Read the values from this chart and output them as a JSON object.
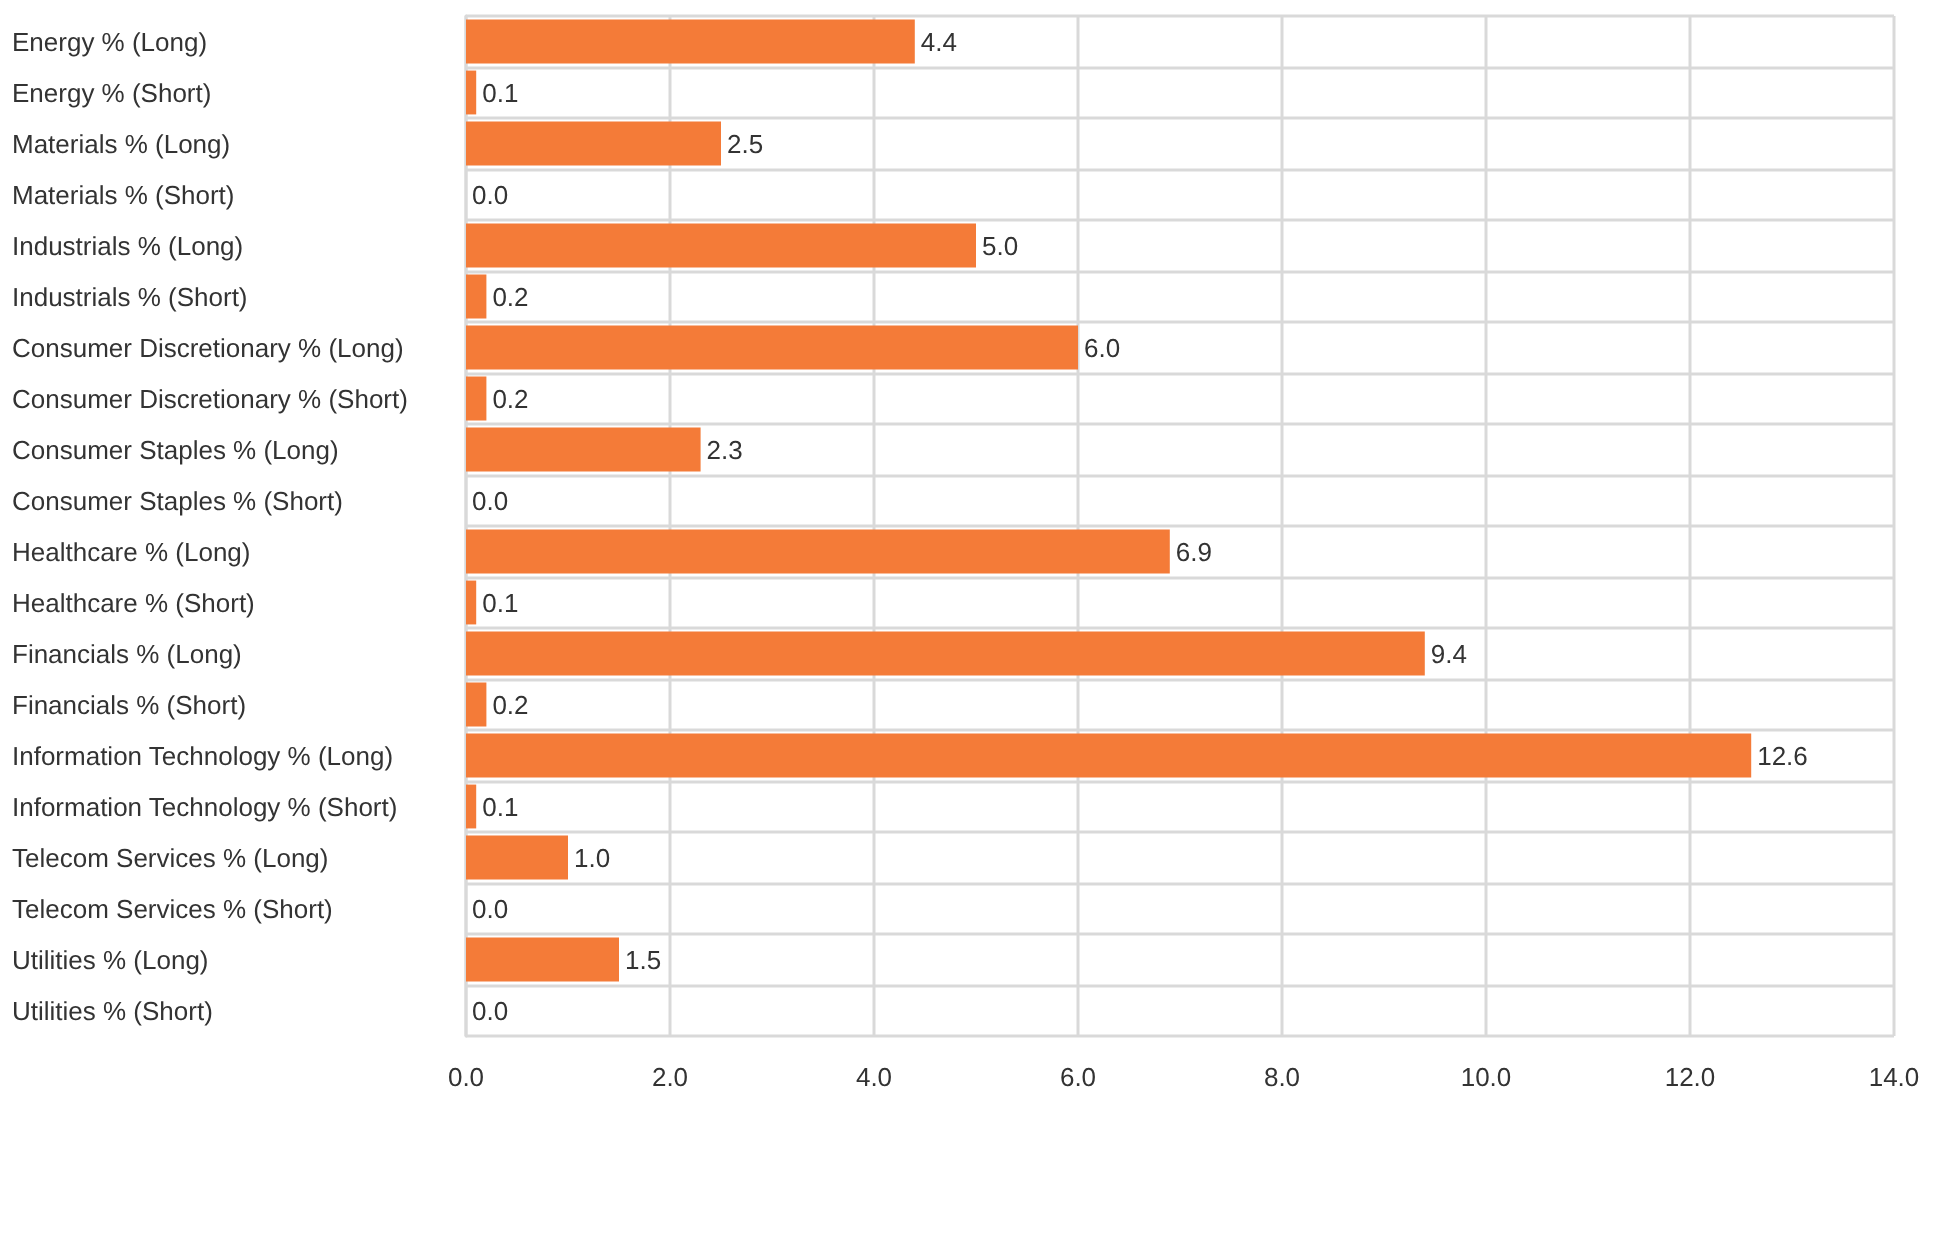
{
  "chart_data": {
    "type": "bar",
    "orientation": "horizontal",
    "categories": [
      "Energy % (Long)",
      "Energy % (Short)",
      "Materials % (Long)",
      "Materials % (Short)",
      "Industrials % (Long)",
      "Industrials % (Short)",
      "Consumer Discretionary % (Long)",
      "Consumer Discretionary % (Short)",
      "Consumer Staples % (Long)",
      "Consumer Staples % (Short)",
      "Healthcare % (Long)",
      "Healthcare % (Short)",
      "Financials % (Long)",
      "Financials % (Short)",
      "Information Technology % (Long)",
      "Information Technology % (Short)",
      "Telecom Services % (Long)",
      "Telecom Services % (Short)",
      "Utilities % (Long)",
      "Utilities % (Short)"
    ],
    "series": [
      {
        "color": "#f47b38",
        "values": [
          4.4,
          0.1,
          2.5,
          0.0,
          5.0,
          0.2,
          6.0,
          0.2,
          2.3,
          0.0,
          6.9,
          0.1,
          9.4,
          0.2,
          12.6,
          0.1,
          1.0,
          0.0,
          1.5,
          0.0
        ],
        "value_labels": [
          "4.4",
          "0.1",
          "2.5",
          "0.0",
          "5.0",
          "0.2",
          "6.0",
          "0.2",
          "2.3",
          "0.0",
          "6.9",
          "0.1",
          "9.4",
          "0.2",
          "12.6",
          "0.1",
          "1.0",
          "0.0",
          "1.5",
          "0.0"
        ]
      }
    ],
    "xlim": [
      0,
      14
    ],
    "xticks": [
      {
        "value": 0,
        "label": "0.0"
      },
      {
        "value": 2,
        "label": "2.0"
      },
      {
        "value": 4,
        "label": "4.0"
      },
      {
        "value": 6,
        "label": "6.0"
      },
      {
        "value": 8,
        "label": "8.0"
      },
      {
        "value": 10,
        "label": "10.0"
      },
      {
        "value": 12,
        "label": "12.0"
      },
      {
        "value": 14,
        "label": "14.0"
      }
    ],
    "grid": true
  }
}
